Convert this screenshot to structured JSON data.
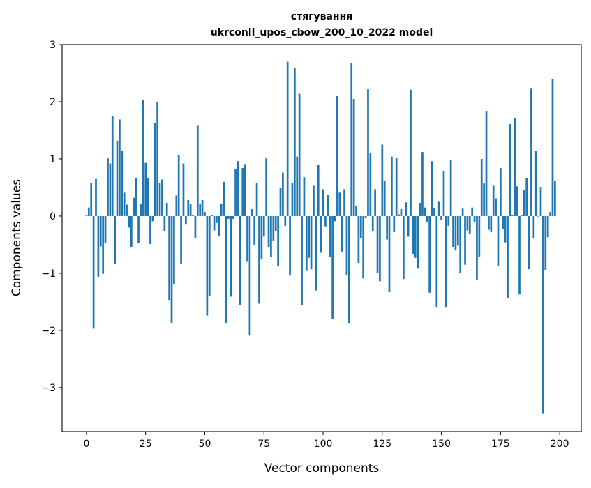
{
  "chart_data": {
    "type": "bar",
    "title": "стягування",
    "subtitle": "ukrconll_upos_cbow_200_10_2022 model",
    "xlabel": "Vector components",
    "ylabel": "Components values",
    "xlim": [
      -10.3,
      209.1
    ],
    "ylim": [
      -3.77,
      3.0
    ],
    "xticks": [
      0,
      25,
      50,
      75,
      100,
      125,
      150,
      175,
      200
    ],
    "xtick_labels": [
      "0",
      "25",
      "50",
      "75",
      "100",
      "125",
      "150",
      "175",
      "200"
    ],
    "yticks": [
      -3,
      -2,
      -1,
      0,
      1,
      2,
      3
    ],
    "ytick_labels": [
      "−3",
      "−2",
      "−1",
      "0",
      "1",
      "2",
      "3"
    ],
    "grid": false,
    "bar_color": "#1f77b4",
    "values": [
      0.01,
      0.15,
      0.58,
      -1.97,
      0.65,
      -1.06,
      -0.53,
      -1.01,
      -0.47,
      1.01,
      0.92,
      1.75,
      -0.84,
      1.32,
      1.69,
      1.14,
      0.41,
      0.2,
      -0.2,
      -0.55,
      0.32,
      0.67,
      -0.47,
      0.21,
      2.03,
      0.93,
      0.67,
      -0.49,
      -0.09,
      1.63,
      1.99,
      0.58,
      0.64,
      -0.26,
      0.23,
      -1.48,
      -1.87,
      -1.19,
      0.36,
      1.07,
      -0.83,
      0.92,
      -0.15,
      0.28,
      0.21,
      0.02,
      -0.38,
      1.58,
      0.22,
      0.28,
      0.07,
      -1.74,
      -1.39,
      0.02,
      -0.25,
      -0.12,
      -0.35,
      0.22,
      0.6,
      -1.87,
      -0.05,
      -1.41,
      -0.05,
      0.83,
      0.96,
      -1.56,
      0.84,
      0.91,
      -0.8,
      -2.09,
      0.12,
      -0.51,
      0.58,
      -1.53,
      -0.75,
      -0.36,
      1.01,
      -0.55,
      -0.72,
      -0.43,
      -0.26,
      -0.88,
      0.49,
      0.76,
      -0.17,
      2.7,
      -1.04,
      0.58,
      2.59,
      1.04,
      2.14,
      -1.56,
      0.68,
      -0.96,
      -0.73,
      -0.93,
      0.53,
      -1.3,
      0.9,
      -0.64,
      0.47,
      -0.18,
      0.37,
      -0.72,
      -1.8,
      -0.09,
      2.1,
      0.41,
      -0.62,
      0.47,
      -1.03,
      -1.88,
      2.67,
      2.05,
      0.17,
      -0.82,
      -0.39,
      -1.09,
      -0.03,
      2.22,
      1.1,
      -0.26,
      0.47,
      -1.0,
      -1.14,
      1.25,
      0.61,
      -0.41,
      -1.33,
      1.04,
      -0.28,
      1.02,
      0.03,
      0.12,
      -1.1,
      0.24,
      -0.36,
      2.21,
      -0.67,
      -0.73,
      -0.92,
      0.23,
      1.12,
      0.15,
      -0.1,
      -1.34,
      0.96,
      0.14,
      -1.6,
      0.25,
      -0.07,
      0.78,
      -1.6,
      -0.17,
      0.98,
      -0.55,
      -0.6,
      -0.52,
      -0.99,
      0.13,
      -0.85,
      -0.25,
      -0.31,
      0.15,
      -0.1,
      -1.12,
      -0.71,
      1.0,
      0.57,
      1.84,
      -0.24,
      -0.28,
      0.53,
      0.31,
      -0.87,
      0.84,
      -0.23,
      -0.46,
      -1.43,
      1.61,
      0.02,
      1.72,
      0.52,
      -1.37,
      0.01,
      0.46,
      0.67,
      -0.93,
      2.24,
      -0.38,
      1.14,
      -0.01,
      0.51,
      -3.46,
      -0.94,
      -0.37,
      0.07,
      2.4,
      0.62
    ]
  }
}
